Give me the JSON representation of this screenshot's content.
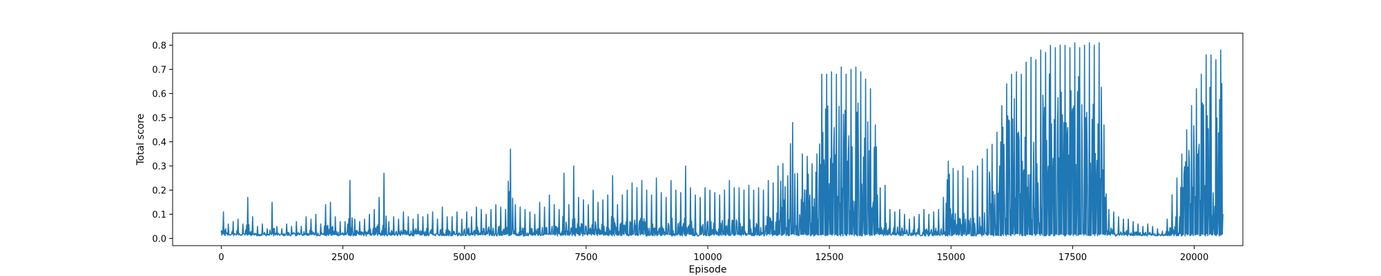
{
  "chart_data": {
    "type": "line",
    "title": "",
    "xlabel": "Episode",
    "ylabel": "Total score",
    "xlim": [
      -1000,
      21000
    ],
    "ylim": [
      -0.03,
      0.85
    ],
    "x_ticks": [
      0,
      2500,
      5000,
      7500,
      10000,
      12500,
      15000,
      17500,
      20000
    ],
    "x_tick_labels": [
      "0",
      "2500",
      "5000",
      "7500",
      "10000",
      "12500",
      "15000",
      "17500",
      "20000"
    ],
    "y_ticks": [
      0.0,
      0.1,
      0.2,
      0.3,
      0.4,
      0.5,
      0.6,
      0.7,
      0.8
    ],
    "y_tick_labels": [
      "0.0",
      "0.1",
      "0.2",
      "0.3",
      "0.4",
      "0.5",
      "0.6",
      "0.7",
      "0.8"
    ],
    "grid": false,
    "legend": "none",
    "series": [
      {
        "color": "#1f77b4",
        "x_start": 0,
        "x_end": 20000,
        "bin_width": 100,
        "baseline": [
          0.01,
          0.01,
          0.01,
          0.01,
          0.01,
          0.01,
          0.01,
          0.01,
          0.01,
          0.01,
          0.01,
          0.01,
          0.01,
          0.01,
          0.01,
          0.01,
          0.01,
          0.01,
          0.01,
          0.01,
          0.01,
          0.01,
          0.01,
          0.01,
          0.01,
          0.01,
          0.01,
          0.01,
          0.01,
          0.01,
          0.01,
          0.01,
          0.01,
          0.01,
          0.01,
          0.01,
          0.01,
          0.01,
          0.01,
          0.01,
          0.01,
          0.01,
          0.01,
          0.01,
          0.01,
          0.01,
          0.01,
          0.01,
          0.01,
          0.01,
          0.01,
          0.01,
          0.01,
          0.01,
          0.01,
          0.01,
          0.01,
          0.01,
          0.01,
          0.01,
          0.01,
          0.01,
          0.01,
          0.01,
          0.01,
          0.01,
          0.01,
          0.01,
          0.01,
          0.01,
          0.01,
          0.01,
          0.01,
          0.01,
          0.01,
          0.01,
          0.01,
          0.01,
          0.01,
          0.01,
          0.01,
          0.01,
          0.01,
          0.01,
          0.01,
          0.01,
          0.01,
          0.01,
          0.01,
          0.01,
          0.01,
          0.01,
          0.01,
          0.01,
          0.01,
          0.01,
          0.01,
          0.01,
          0.01,
          0.01,
          0.01,
          0.01,
          0.01,
          0.01,
          0.01,
          0.01,
          0.01,
          0.01,
          0.01,
          0.01,
          0.01,
          0.01,
          0.01,
          0.01,
          0.01,
          0.01,
          0.01,
          0.01,
          0.01,
          0.01,
          0.01,
          0.01,
          0.01,
          0.01,
          0.01,
          0.01,
          0.01,
          0.01,
          0.01,
          0.01,
          0.01,
          0.01,
          0.01,
          0.01,
          0.01,
          0.01,
          0.01,
          0.01,
          0.01,
          0.01,
          0.01,
          0.01,
          0.01,
          0.01,
          0.01,
          0.01,
          0.01,
          0.01,
          0.01,
          0.01,
          0.01,
          0.01,
          0.01,
          0.01,
          0.01,
          0.01,
          0.01,
          0.01,
          0.01,
          0.01,
          0.01,
          0.01,
          0.01,
          0.01,
          0.01,
          0.01,
          0.01,
          0.01,
          0.01,
          0.01,
          0.01,
          0.01,
          0.01,
          0.01,
          0.01,
          0.01,
          0.01,
          0.01,
          0.01,
          0.01,
          0.01,
          0.01,
          0.01,
          0.01,
          0.01,
          0.01,
          0.01,
          0.01,
          0.01,
          0.01,
          0.01,
          0.01,
          0.01,
          0.01,
          0.01,
          0.01,
          0.01,
          0.01,
          0.01,
          0.01,
          0.01,
          0.01,
          0.01,
          0.01,
          0.01,
          0.01
        ],
        "peak": [
          0.11,
          0.06,
          0.07,
          0.08,
          0.06,
          0.17,
          0.09,
          0.05,
          0.06,
          0.04,
          0.15,
          0.05,
          0.04,
          0.06,
          0.05,
          0.07,
          0.05,
          0.09,
          0.08,
          0.1,
          0.06,
          0.14,
          0.15,
          0.09,
          0.07,
          0.07,
          0.24,
          0.08,
          0.07,
          0.08,
          0.1,
          0.12,
          0.17,
          0.27,
          0.07,
          0.09,
          0.08,
          0.11,
          0.09,
          0.08,
          0.1,
          0.09,
          0.1,
          0.11,
          0.08,
          0.13,
          0.09,
          0.09,
          0.11,
          0.08,
          0.11,
          0.09,
          0.13,
          0.12,
          0.1,
          0.12,
          0.14,
          0.13,
          0.12,
          0.37,
          0.14,
          0.13,
          0.12,
          0.11,
          0.1,
          0.15,
          0.13,
          0.18,
          0.14,
          0.12,
          0.27,
          0.14,
          0.3,
          0.17,
          0.16,
          0.14,
          0.2,
          0.15,
          0.16,
          0.18,
          0.26,
          0.14,
          0.18,
          0.2,
          0.23,
          0.21,
          0.24,
          0.2,
          0.18,
          0.25,
          0.19,
          0.17,
          0.24,
          0.2,
          0.19,
          0.3,
          0.21,
          0.18,
          0.17,
          0.21,
          0.2,
          0.19,
          0.18,
          0.2,
          0.24,
          0.21,
          0.21,
          0.2,
          0.22,
          0.2,
          0.21,
          0.2,
          0.24,
          0.23,
          0.3,
          0.31,
          0.26,
          0.48,
          0.27,
          0.35,
          0.34,
          0.31,
          0.35,
          0.68,
          0.68,
          0.69,
          0.68,
          0.71,
          0.68,
          0.7,
          0.71,
          0.69,
          0.66,
          0.62,
          0.47,
          0.21,
          0.22,
          0.12,
          0.11,
          0.12,
          0.1,
          0.08,
          0.09,
          0.1,
          0.12,
          0.1,
          0.11,
          0.12,
          0.17,
          0.32,
          0.29,
          0.28,
          0.3,
          0.25,
          0.28,
          0.3,
          0.33,
          0.37,
          0.39,
          0.44,
          0.55,
          0.64,
          0.68,
          0.69,
          0.68,
          0.73,
          0.75,
          0.74,
          0.78,
          0.77,
          0.8,
          0.79,
          0.8,
          0.8,
          0.79,
          0.81,
          0.79,
          0.8,
          0.81,
          0.8,
          0.81,
          0.47,
          0.12,
          0.11,
          0.09,
          0.08,
          0.08,
          0.07,
          0.06,
          0.05,
          0.06,
          0.05,
          0.04,
          0.03,
          0.08,
          0.18,
          0.25,
          0.35,
          0.45,
          0.55,
          0.62,
          0.68,
          0.76,
          0.76,
          0.74,
          0.78,
          0.78
        ]
      }
    ]
  }
}
